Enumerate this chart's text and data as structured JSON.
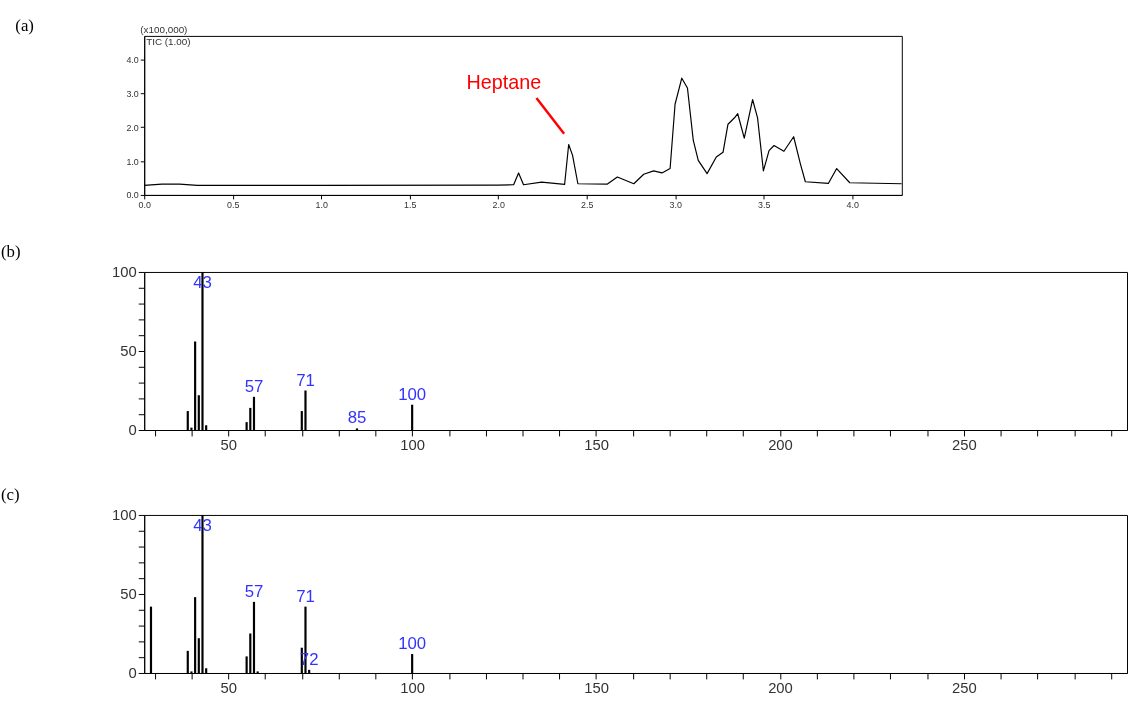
{
  "chart_data": [
    {
      "type": "line",
      "title": "(a)",
      "x": [
        0,
        0.1,
        0.2,
        0.3,
        1.0,
        2.0,
        2.087,
        2.115,
        2.143,
        2.245,
        2.375,
        2.398,
        2.42,
        2.45,
        2.617,
        2.673,
        2.766,
        2.822,
        2.878,
        2.925,
        2.971,
        2.999,
        3.037,
        3.069,
        3.102,
        3.13,
        3.18,
        3.232,
        3.27,
        3.298,
        3.335,
        3.353,
        3.39,
        3.437,
        3.465,
        3.498,
        3.53,
        3.558,
        3.614,
        3.669,
        3.707,
        3.735,
        3.865,
        3.912,
        3.986,
        4.28
      ],
      "series": [
        {
          "color": "#000000",
          "values": [
            0.28,
            0.32,
            0.32,
            0.28,
            0.28,
            0.29,
            0.3,
            0.65,
            0.3,
            0.38,
            0.31,
            1.49,
            1.17,
            0.33,
            0.32,
            0.53,
            0.33,
            0.61,
            0.71,
            0.65,
            0.78,
            2.68,
            3.45,
            3.16,
            1.61,
            1.02,
            0.63,
            1.12,
            1.26,
            2.09,
            2.28,
            2.4,
            1.68,
            2.82,
            2.28,
            0.71,
            1.31,
            1.46,
            1.29,
            1.72,
            0.92,
            0.39,
            0.34,
            0.78,
            0.36,
            0.33
          ]
        }
      ],
      "xlim": [
        0,
        4.28
      ],
      "ylim": [
        0,
        4.7
      ],
      "xticks": [
        {
          "value": 0,
          "label": "0.0"
        },
        {
          "value": 0.5,
          "label": "0.5"
        },
        {
          "value": 1,
          "label": "1.0"
        },
        {
          "value": 1.5,
          "label": "1.5"
        },
        {
          "value": 2,
          "label": "2.0"
        },
        {
          "value": 2.5,
          "label": "2.5"
        },
        {
          "value": 3,
          "label": "3.0"
        },
        {
          "value": 3.5,
          "label": "3.5"
        },
        {
          "value": 4,
          "label": "4.0"
        }
      ],
      "yticks": [
        {
          "value": 0,
          "label": "0.0"
        },
        {
          "value": 1,
          "label": "1.0"
        },
        {
          "value": 2,
          "label": "2.0"
        },
        {
          "value": 3,
          "label": "3.0"
        },
        {
          "value": 4,
          "label": "4.0"
        }
      ],
      "annotations": [
        "(x100,000)",
        "TIC (1.00)",
        {
          "text": "Heptane",
          "x": 2.4,
          "y": 1.49
        }
      ],
      "grid": false,
      "legend": false
    },
    {
      "type": "bar",
      "title": "(b)",
      "x": [
        39,
        40,
        41,
        42,
        43,
        44,
        55,
        56,
        57,
        70,
        71,
        85,
        100
      ],
      "series": [
        {
          "color": "#000000",
          "values": [
            12,
            1.5,
            56,
            22,
            100,
            3,
            5,
            14,
            21,
            12,
            25,
            1,
            16
          ]
        }
      ],
      "xlim": [
        28.5,
        293
      ],
      "ylim": [
        0,
        100
      ],
      "xticks": [
        {
          "value": 30,
          "label": null
        },
        {
          "value": 40,
          "label": null
        },
        50,
        {
          "value": 60,
          "label": null
        },
        {
          "value": 70,
          "label": null
        },
        {
          "value": 80,
          "label": null
        },
        {
          "value": 90,
          "label": null
        },
        100,
        {
          "value": 110,
          "label": null
        },
        {
          "value": 120,
          "label": null
        },
        {
          "value": 130,
          "label": null
        },
        {
          "value": 140,
          "label": null
        },
        150,
        {
          "value": 160,
          "label": null
        },
        {
          "value": 170,
          "label": null
        },
        {
          "value": 180,
          "label": null
        },
        {
          "value": 190,
          "label": null
        },
        200,
        {
          "value": 210,
          "label": null
        },
        {
          "value": 220,
          "label": null
        },
        {
          "value": 230,
          "label": null
        },
        {
          "value": 240,
          "label": null
        },
        250,
        {
          "value": 260,
          "label": null
        },
        {
          "value": 270,
          "label": null
        },
        {
          "value": 280,
          "label": null
        },
        {
          "value": 290,
          "label": null
        }
      ],
      "yticks": [
        0,
        {
          "value": 10,
          "label": null
        },
        {
          "value": 20,
          "label": null
        },
        {
          "value": 30,
          "label": null
        },
        {
          "value": 40,
          "label": null
        },
        50,
        {
          "value": 60,
          "label": null
        },
        {
          "value": 70,
          "label": null
        },
        {
          "value": 80,
          "label": null
        },
        {
          "value": 90,
          "label": null
        },
        100
      ],
      "annotations": [
        {
          "text": "43",
          "x": 43,
          "y": 100
        },
        {
          "text": "57",
          "x": 57,
          "y": 21
        },
        {
          "text": "71",
          "x": 71,
          "y": 25
        },
        {
          "text": "85",
          "x": 85,
          "y": 1
        },
        {
          "text": "100",
          "x": 100,
          "y": 16
        }
      ],
      "grid": false,
      "legend": false
    },
    {
      "type": "bar",
      "title": "(c)",
      "x": [
        29,
        39,
        40,
        41,
        42,
        43,
        44,
        55,
        56,
        57,
        58,
        70,
        71,
        72,
        100
      ],
      "series": [
        {
          "color": "#000000",
          "values": [
            42,
            14,
            1,
            48,
            22,
            100,
            3,
            10.5,
            25,
            45,
            1,
            16,
            42,
            2,
            12
          ]
        }
      ],
      "xlim": [
        28.5,
        293
      ],
      "ylim": [
        0,
        100
      ],
      "xticks": [
        {
          "value": 30,
          "label": null
        },
        {
          "value": 40,
          "label": null
        },
        50,
        {
          "value": 60,
          "label": null
        },
        {
          "value": 70,
          "label": null
        },
        {
          "value": 80,
          "label": null
        },
        {
          "value": 90,
          "label": null
        },
        100,
        {
          "value": 110,
          "label": null
        },
        {
          "value": 120,
          "label": null
        },
        {
          "value": 130,
          "label": null
        },
        {
          "value": 140,
          "label": null
        },
        150,
        {
          "value": 160,
          "label": null
        },
        {
          "value": 170,
          "label": null
        },
        {
          "value": 180,
          "label": null
        },
        {
          "value": 190,
          "label": null
        },
        200,
        {
          "value": 210,
          "label": null
        },
        {
          "value": 220,
          "label": null
        },
        {
          "value": 230,
          "label": null
        },
        {
          "value": 240,
          "label": null
        },
        250,
        {
          "value": 260,
          "label": null
        },
        {
          "value": 270,
          "label": null
        },
        {
          "value": 280,
          "label": null
        },
        {
          "value": 290,
          "label": null
        }
      ],
      "yticks": [
        0,
        {
          "value": 10,
          "label": null
        },
        {
          "value": 20,
          "label": null
        },
        {
          "value": 30,
          "label": null
        },
        {
          "value": 40,
          "label": null
        },
        50,
        {
          "value": 60,
          "label": null
        },
        {
          "value": 70,
          "label": null
        },
        {
          "value": 80,
          "label": null
        },
        {
          "value": 90,
          "label": null
        },
        100
      ],
      "annotations": [
        {
          "text": "43",
          "x": 43,
          "y": 100
        },
        {
          "text": "57",
          "x": 57,
          "y": 45
        },
        {
          "text": "71",
          "x": 71,
          "y": 42
        },
        {
          "text": "72",
          "x": 72,
          "y": 2
        },
        {
          "text": "100",
          "x": 100,
          "y": 12
        }
      ],
      "grid": false,
      "legend": false
    }
  ]
}
